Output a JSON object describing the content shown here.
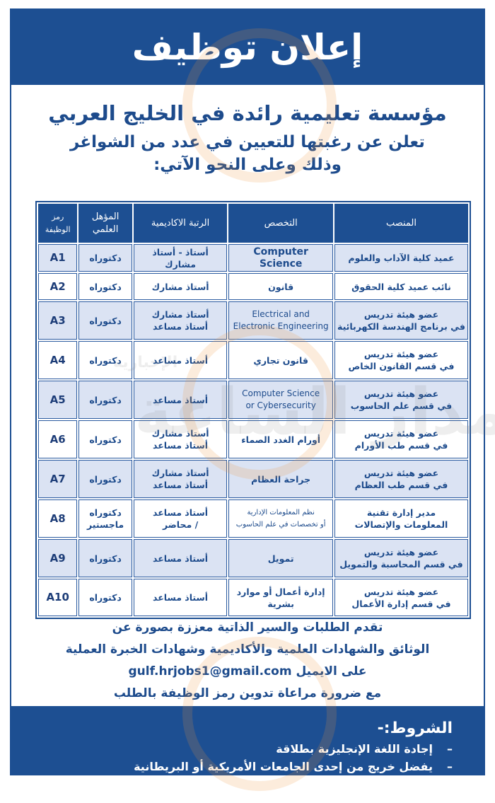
{
  "header": {
    "title": "إعلان توظيف"
  },
  "intro": {
    "organization": "مؤسسة تعليمية رائدة في الخليج العربي",
    "line2": "تعلن عن رغبتها للتعيين في عدد من الشواغر",
    "line3": "وذلك وعلى النحو الآتي:"
  },
  "table": {
    "headers": {
      "position": "المنصب",
      "specialization": "التخصص",
      "rank": "الرتبة الاكاديمية",
      "qualification": "المؤهل العلمي",
      "code": "رمز الوظيفة"
    },
    "rows": [
      {
        "position": [
          "عميد كلية الآداب والعلوم"
        ],
        "specialization": [
          "Computer Science"
        ],
        "rank": [
          "أستاذ - أستاذ مشارك"
        ],
        "qualification": [
          "دكتوراه"
        ],
        "code": "A1"
      },
      {
        "position": [
          "نائب عميد كلية الحقوق"
        ],
        "specialization": [
          "قانون"
        ],
        "rank": [
          "أستاذ مشارك"
        ],
        "qualification": [
          "دكتوراه"
        ],
        "code": "A2"
      },
      {
        "position": [
          "عضو هيئة تدريس",
          "في برنامج الهندسة الكهربائية"
        ],
        "specialization": [
          "Electrical and",
          "Electronic Engineering"
        ],
        "rank": [
          "أستاذ مشارك",
          "أستاذ مساعد"
        ],
        "qualification": [
          "دكتوراه"
        ],
        "code": "A3"
      },
      {
        "position": [
          "عضو هيئة تدريس",
          "في قسم القانون الخاص"
        ],
        "specialization": [
          "قانون تجاري"
        ],
        "rank": [
          "أستاذ مساعد"
        ],
        "qualification": [
          "دكتوراه"
        ],
        "code": "A4"
      },
      {
        "position": [
          "عضو هيئة تدريس",
          "في قسم علم الحاسوب"
        ],
        "specialization": [
          "Computer Science",
          "or Cybersecurity"
        ],
        "rank": [
          "أستاذ مساعد"
        ],
        "qualification": [
          "دكتوراه"
        ],
        "code": "A5"
      },
      {
        "position": [
          "عضو هيئة تدريس",
          "في قسم طب الأورام"
        ],
        "specialization": [
          "أورام الغدد الصماء"
        ],
        "rank": [
          "أستاذ مشارك",
          "أستاذ مساعد"
        ],
        "qualification": [
          "دكتوراه"
        ],
        "code": "A6"
      },
      {
        "position": [
          "عضو هيئة تدريس",
          "في قسم طب العظام"
        ],
        "specialization": [
          "جراحة العظام"
        ],
        "rank": [
          "أستاذ مشارك",
          "أستاذ مساعد"
        ],
        "qualification": [
          "دكتوراه"
        ],
        "code": "A7"
      },
      {
        "position": [
          "مدير إدارة تقنية",
          "المعلومات والإتصالات"
        ],
        "specialization": [
          "نظم المعلومات الإدارية",
          "أو تخصصات في علم الحاسوب"
        ],
        "rank": [
          "أستاذ مساعد",
          "/ محاضر"
        ],
        "qualification": [
          "دكتوراه",
          "ماجستير"
        ],
        "code": "A8"
      },
      {
        "position": [
          "عضو هيئة تدريس",
          "في قسم المحاسبة والتمويل"
        ],
        "specialization": [
          "تمويل"
        ],
        "rank": [
          "أستاذ مساعد"
        ],
        "qualification": [
          "دكتوراه"
        ],
        "code": "A9"
      },
      {
        "position": [
          "عضو هيئة تدريس",
          "في قسم إدارة الأعمال"
        ],
        "specialization": [
          "إدارة أعمال أو موارد بشرية"
        ],
        "rank": [
          "أستاذ مساعد"
        ],
        "qualification": [
          "دكتوراه"
        ],
        "code": "A10"
      }
    ]
  },
  "apply": {
    "line1": "تقدم الطلبات والسير الذاتية معززة بصورة عن",
    "line2": "الوثائق والشهادات العلمية والأكاديمية وشهادات الخبرة العملية",
    "line3_prefix": "على الايميل",
    "email": "gulf.hrjobs1@gmail.com",
    "line4": "مع ضرورة مراعاة تدوين رمز الوظيفة بالطلب"
  },
  "conditions": {
    "title": "الشروط:-",
    "items": [
      "إجادة اللغة الإنجليزية بطلاقة",
      "يفضل خريج من إحدى الجامعات الأمريكية أو البريطانية"
    ]
  },
  "watermark": {
    "main": "مدار الساعة",
    "sub": "الإخبارية"
  },
  "colors": {
    "brand_blue": "#1d4f92",
    "row_alt": "#dbe3f3"
  }
}
